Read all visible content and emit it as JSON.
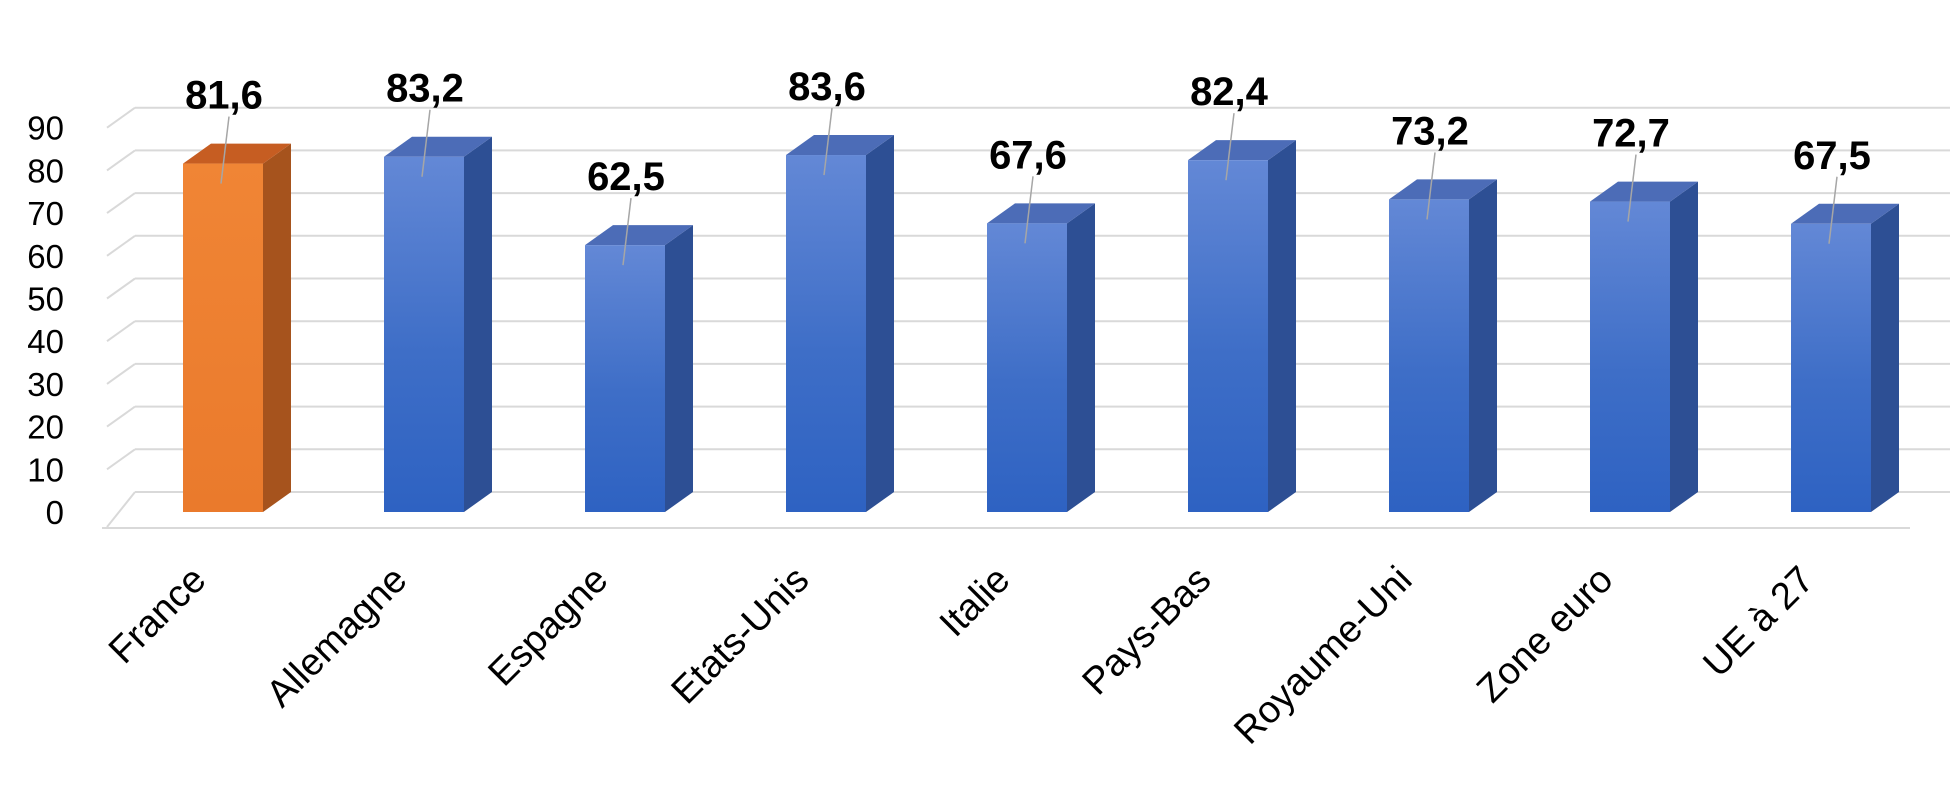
{
  "chart_data": {
    "type": "bar",
    "categories": [
      "France",
      "Allemagne",
      "Espagne",
      "Etats-Unis",
      "Italie",
      "Pays-Bas",
      "Royaume-Uni",
      "Zone euro",
      "UE à 27"
    ],
    "values": [
      81.6,
      83.2,
      62.5,
      83.6,
      67.6,
      82.4,
      73.2,
      72.7,
      67.5
    ],
    "data_labels": [
      "81,6",
      "83,2",
      "62,5",
      "83,6",
      "67,6",
      "82,4",
      "73,2",
      "72,7",
      "67,5"
    ],
    "y_ticks": [
      0,
      10,
      20,
      30,
      40,
      50,
      60,
      70,
      80,
      90
    ],
    "ylim": [
      0,
      90
    ],
    "grid": true,
    "legend": "none",
    "style": "3d-column",
    "colors": {
      "highlight": "#ED7D31",
      "default": "#4472C4"
    },
    "highlight_category": "France"
  }
}
